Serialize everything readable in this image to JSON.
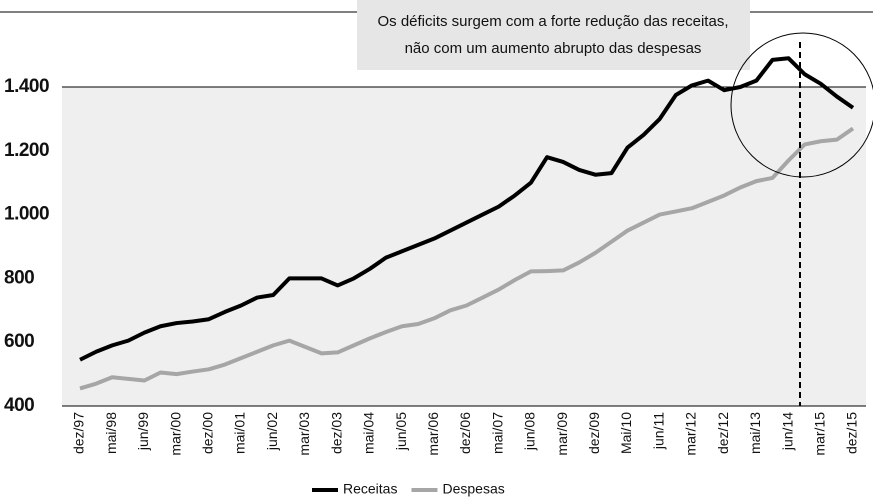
{
  "chart_data": {
    "type": "line",
    "annotation": [
      "Os déficits surgem com a forte redução das receitas,",
      "não com um aumento abrupto das despesas"
    ],
    "categories": [
      "dez/97",
      null,
      "mai/98",
      null,
      "jun/99",
      null,
      "mar/00",
      null,
      "dez/00",
      null,
      "mai/01",
      null,
      "jun/02",
      null,
      "mar/03",
      null,
      "dez/03",
      null,
      "mai/04",
      null,
      "jun/05",
      null,
      "mar/06",
      null,
      "dez/06",
      null,
      "mai/07",
      null,
      "jun/08",
      null,
      "mar/09",
      null,
      "dez/09",
      null,
      "Mai/10",
      null,
      "jun/11",
      null,
      "mar/12",
      null,
      "dez/12",
      null,
      "mai/13",
      null,
      "jun/14",
      null,
      "mar/15",
      null,
      "dez/15"
    ],
    "series": [
      {
        "name": "Receitas",
        "color": "#000000",
        "values": [
          545,
          570,
          590,
          605,
          630,
          650,
          660,
          665,
          672,
          695,
          715,
          740,
          748,
          800,
          800,
          800,
          778,
          800,
          830,
          865,
          885,
          905,
          925,
          950,
          975,
          1000,
          1025,
          1060,
          1100,
          1180,
          1165,
          1140,
          1125,
          1130,
          1210,
          1250,
          1300,
          1375,
          1405,
          1420,
          1390,
          1400,
          1420,
          1485,
          1490,
          1440,
          1410,
          1370,
          1335
        ]
      },
      {
        "name": "Despesas",
        "color": "#a6a6a6",
        "values": [
          455,
          470,
          490,
          485,
          480,
          505,
          500,
          508,
          515,
          530,
          550,
          570,
          590,
          605,
          585,
          565,
          568,
          590,
          612,
          632,
          650,
          657,
          675,
          700,
          715,
          740,
          765,
          795,
          822,
          823,
          825,
          850,
          880,
          915,
          950,
          975,
          1000,
          1010,
          1020,
          1040,
          1060,
          1085,
          1105,
          1115,
          1170,
          1220,
          1230,
          1235,
          1270
        ]
      }
    ],
    "ylim": [
      400,
      1400
    ],
    "yticks": [
      {
        "value": 400,
        "label": "400"
      },
      {
        "value": 600,
        "label": "600"
      },
      {
        "value": 800,
        "label": "800"
      },
      {
        "value": 1000,
        "label": "1.000"
      },
      {
        "value": 1200,
        "label": "1.200"
      },
      {
        "value": 1400,
        "label": "1.400"
      }
    ],
    "legend": "bottom"
  }
}
